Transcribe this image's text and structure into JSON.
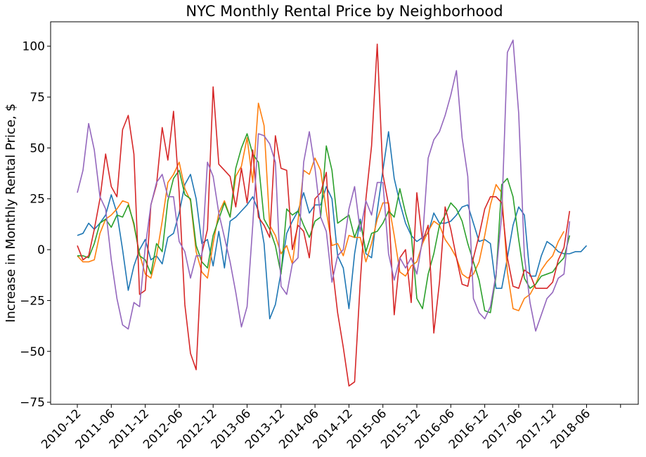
{
  "chart_data": {
    "type": "line",
    "title": "NYC Monthly Rental Price by Neighborhood",
    "xlabel": "",
    "ylabel": "Increase in Monthly Rental Price, $",
    "ylim": [
      -76,
      112
    ],
    "yticks": [
      -75,
      -50,
      -25,
      0,
      25,
      50,
      75,
      100
    ],
    "x_tick_labels": [
      "2010-12",
      "2011-06",
      "2011-12",
      "2012-06",
      "2012-12",
      "2013-06",
      "2013-12",
      "2014-06",
      "2014-12",
      "2015-06",
      "2015-12",
      "2016-06",
      "2016-12",
      "2017-06",
      "2017-12",
      "2018-06"
    ],
    "x_tick_step": 6,
    "n_points": 97,
    "grid": false,
    "legend": "none",
    "series": [
      {
        "color": "#1f77b4",
        "values": [
          7,
          8,
          13,
          10,
          13,
          17,
          27,
          18,
          0,
          -20,
          -8,
          0,
          5,
          -5,
          -3,
          -7,
          6,
          8,
          18,
          32,
          37,
          25,
          3,
          5,
          -8,
          9,
          -9,
          14,
          16,
          19,
          22,
          26,
          19,
          3,
          -34,
          -27,
          -11,
          8,
          14,
          19,
          28,
          18,
          22,
          22,
          31,
          25,
          -3,
          -9,
          -29,
          -2,
          15,
          -2,
          -4,
          19,
          39,
          58,
          35,
          23,
          13,
          7,
          4,
          6,
          8,
          18,
          13,
          13,
          14,
          17,
          21,
          22,
          13,
          4,
          5,
          3,
          -19,
          -19,
          -4,
          12,
          21,
          17,
          -13,
          -13,
          -3,
          4,
          2,
          -1,
          -2,
          -2,
          -1,
          -1,
          2,
          null,
          null,
          null,
          null,
          null,
          null
        ]
      },
      {
        "color": "#ff7f0e",
        "values": [
          -3,
          -6,
          -6,
          -5,
          8,
          15,
          17,
          20,
          24,
          23,
          12,
          -2,
          -12,
          -14,
          -3,
          14,
          33,
          37,
          43,
          30,
          24,
          -1,
          -11,
          -14,
          3,
          18,
          24,
          16,
          36,
          41,
          55,
          33,
          72,
          61,
          12,
          7,
          -2,
          2,
          -7,
          14,
          39,
          37,
          45,
          39,
          19,
          2,
          3,
          -3,
          7,
          6,
          6,
          -6,
          3,
          15,
          23,
          23,
          7,
          -11,
          -13,
          -8,
          -6,
          3,
          9,
          14,
          12,
          5,
          1,
          -4,
          -12,
          -14,
          -12,
          -6,
          7,
          22,
          32,
          28,
          -11,
          -29,
          -30,
          -24,
          -22,
          -17,
          -10,
          -6,
          -3,
          4,
          9,
          null,
          null,
          null,
          null,
          null,
          null,
          null,
          null,
          null,
          null
        ]
      },
      {
        "color": "#2ca02c",
        "values": [
          -3,
          -3,
          -4,
          3,
          13,
          15,
          11,
          17,
          16,
          22,
          13,
          -3,
          -5,
          -12,
          3,
          -1,
          24,
          35,
          39,
          27,
          25,
          2,
          -6,
          -9,
          7,
          15,
          23,
          16,
          40,
          50,
          57,
          47,
          43,
          15,
          10,
          2,
          -12,
          20,
          17,
          19,
          12,
          6,
          14,
          16,
          51,
          39,
          13,
          15,
          17,
          6,
          14,
          -1,
          8,
          9,
          13,
          19,
          16,
          30,
          18,
          8,
          -24,
          -29,
          -12,
          -2,
          12,
          17,
          23,
          20,
          14,
          3,
          -6,
          -15,
          -30,
          -31,
          -13,
          32,
          35,
          26,
          5,
          -14,
          -19,
          -17,
          -13,
          -12,
          -11,
          -7,
          -4,
          7,
          null,
          null,
          null,
          null,
          null,
          null,
          null,
          null,
          null
        ]
      },
      {
        "color": "#d62728",
        "values": [
          2,
          -5,
          -3,
          10,
          25,
          47,
          31,
          26,
          59,
          66,
          47,
          -22,
          -20,
          22,
          32,
          60,
          44,
          68,
          28,
          -27,
          -51,
          -59,
          -2,
          10,
          80,
          42,
          39,
          36,
          21,
          40,
          23,
          49,
          16,
          12,
          6,
          56,
          40,
          39,
          0,
          12,
          9,
          -4,
          25,
          28,
          38,
          -7,
          -31,
          -48,
          -67,
          -65,
          -16,
          25,
          51,
          101,
          37,
          22,
          -32,
          -4,
          0,
          -26,
          28,
          4,
          12,
          -41,
          -16,
          21,
          10,
          -4,
          -17,
          -18,
          -4,
          7,
          20,
          26,
          26,
          23,
          -4,
          -18,
          -19,
          -10,
          -12,
          -19,
          -19,
          -19,
          -16,
          -5,
          1,
          19,
          null,
          null,
          null,
          null,
          null,
          null,
          null,
          null,
          null
        ]
      },
      {
        "color": "#9467bd",
        "values": [
          28,
          39,
          62,
          49,
          26,
          20,
          -5,
          -24,
          -37,
          -39,
          -26,
          -28,
          1,
          22,
          33,
          37,
          26,
          26,
          4,
          -1,
          -14,
          -3,
          -3,
          43,
          36,
          18,
          6,
          -6,
          -21,
          -38,
          -28,
          12,
          57,
          56,
          52,
          43,
          -18,
          -22,
          -7,
          -4,
          43,
          58,
          40,
          16,
          9,
          -16,
          -3,
          0,
          20,
          31,
          9,
          24,
          17,
          33,
          33,
          -2,
          -15,
          -4,
          -9,
          -4,
          -12,
          5,
          45,
          54,
          58,
          66,
          76,
          88,
          55,
          36,
          -24,
          -31,
          -34,
          -28,
          -12,
          17,
          97,
          103,
          67,
          -3,
          -26,
          -40,
          -32,
          -24,
          -21,
          -14,
          -12,
          14,
          null,
          null,
          null,
          null,
          null,
          null,
          null,
          null,
          null
        ]
      }
    ]
  }
}
